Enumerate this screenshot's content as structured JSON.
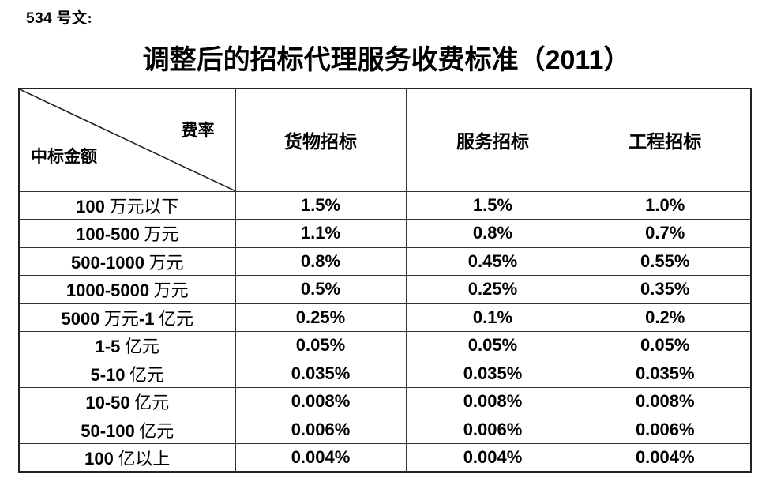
{
  "doc_label": "534 号文:",
  "title": "调整后的招标代理服务收费标准（2011）",
  "table": {
    "corner": {
      "top_right": "费率",
      "bottom_left": "中标金额"
    },
    "columns": [
      "货物招标",
      "服务招标",
      "工程招标"
    ],
    "rows": [
      {
        "amount": "100 万元以下",
        "values": [
          "1.5%",
          "1.5%",
          "1.0%"
        ]
      },
      {
        "amount": "100-500 万元",
        "values": [
          "1.1%",
          "0.8%",
          "0.7%"
        ]
      },
      {
        "amount": "500-1000 万元",
        "values": [
          "0.8%",
          "0.45%",
          "0.55%"
        ]
      },
      {
        "amount": "1000-5000 万元",
        "values": [
          "0.5%",
          "0.25%",
          "0.35%"
        ]
      },
      {
        "amount": "5000 万元-1 亿元",
        "values": [
          "0.25%",
          "0.1%",
          "0.2%"
        ]
      },
      {
        "amount": "1-5 亿元",
        "values": [
          "0.05%",
          "0.05%",
          "0.05%"
        ]
      },
      {
        "amount": "5-10 亿元",
        "values": [
          "0.035%",
          "0.035%",
          "0.035%"
        ]
      },
      {
        "amount": "10-50 亿元",
        "values": [
          "0.008%",
          "0.008%",
          "0.008%"
        ]
      },
      {
        "amount": "50-100 亿元",
        "values": [
          "0.006%",
          "0.006%",
          "0.006%"
        ]
      },
      {
        "amount": "100 亿以上",
        "values": [
          "0.004%",
          "0.004%",
          "0.004%"
        ]
      }
    ]
  },
  "colors": {
    "text": "#000000",
    "border": "#333333",
    "background": "#ffffff"
  }
}
